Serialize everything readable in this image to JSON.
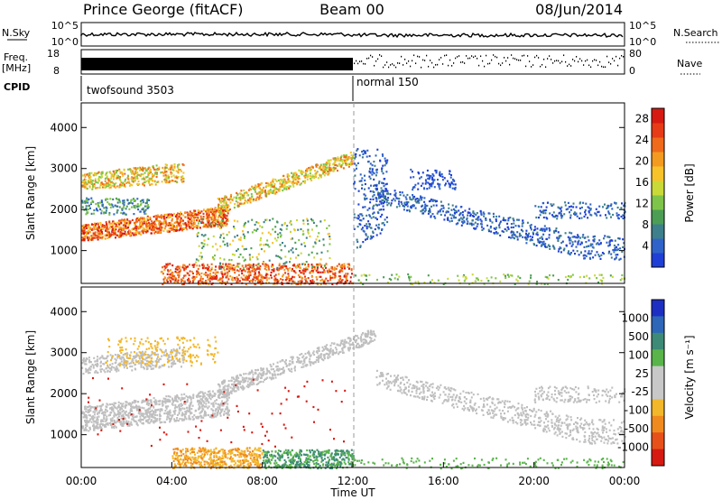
{
  "header": {
    "station": "Prince George (fitACF)",
    "beam": "Beam 00",
    "date": "08/Jun/2014"
  },
  "strips": {
    "nsky_label": "N.Sky",
    "nsky_ticks": [
      "10^5",
      "10^0"
    ],
    "nsearch_label": "N.Search",
    "nsearch_ticks": [
      "10^5",
      "10^0"
    ],
    "freq_label_line1": "Freq.",
    "freq_label_line2": "[MHz]",
    "freq_ticks": [
      "18",
      "8"
    ],
    "nave_label": "Nave",
    "nave_ticks": [
      "80",
      "0"
    ],
    "cpid_label": "CPID",
    "cpid_segments": [
      {
        "name": "twofsound 3503",
        "start_hour": 0,
        "end_hour": 12
      },
      {
        "name": "normal 150",
        "start_hour": 12,
        "end_hour": 24
      }
    ]
  },
  "chart_data": [
    {
      "type": "heatmap",
      "title": "",
      "ylabel": "Slant Range [km]",
      "xlabel": "",
      "xlim": [
        0,
        24
      ],
      "ylim": [
        200,
        4600
      ],
      "yticks": [
        "1000",
        "2000",
        "3000",
        "4000"
      ],
      "colorbar": {
        "label": "Power [dB]",
        "ticks": [
          "4",
          "8",
          "12",
          "16",
          "20",
          "24",
          "28"
        ],
        "range": [
          0,
          30
        ]
      },
      "regions": [
        {
          "name": "lower band",
          "x": [
            0,
            6
          ],
          "y": [
            1300,
            1600
          ],
          "value": 22
        },
        {
          "name": "upper band",
          "x": [
            0,
            4
          ],
          "y": [
            2600,
            2900
          ],
          "value": 18
        },
        {
          "name": "near-range echoes",
          "x": [
            4,
            12
          ],
          "y": [
            200,
            600
          ],
          "value": 26
        },
        {
          "name": "rising band",
          "x": [
            6,
            12
          ],
          "y": [
            1900,
            3300
          ],
          "value": 16
        },
        {
          "name": "evening band",
          "x": [
            13,
            24
          ],
          "y": [
            800,
            1400
          ],
          "value": 6
        },
        {
          "name": "late echoes",
          "x": [
            20,
            24
          ],
          "y": [
            1800,
            2200
          ],
          "value": 6
        }
      ]
    },
    {
      "type": "heatmap",
      "title": "",
      "ylabel": "Slant Range [km]",
      "xlabel": "Time UT",
      "xlim": [
        0,
        24
      ],
      "ylim": [
        200,
        4600
      ],
      "xticks": [
        "00:00",
        "04:00",
        "08:00",
        "12:00",
        "16:00",
        "20:00",
        "00:00"
      ],
      "yticks": [
        "1000",
        "2000",
        "3000",
        "4000"
      ],
      "colorbar": {
        "label": "Velocity [m s⁻¹]",
        "ticks": [
          "1000",
          "500",
          "100",
          "25",
          "-25",
          "-100",
          "-500",
          "-1000"
        ]
      },
      "regions": [
        {
          "name": "ground scatter",
          "x": [
            0,
            24
          ],
          "y": [
            800,
            3400
          ],
          "value": 0
        },
        {
          "name": "negative flow",
          "x": [
            4,
            8
          ],
          "y": [
            200,
            700
          ],
          "value": -300
        },
        {
          "name": "positive flow",
          "x": [
            8,
            12
          ],
          "y": [
            200,
            600
          ],
          "value": 150
        }
      ]
    }
  ],
  "colors": {
    "power_scale": [
      "#1f3fd6",
      "#2f63c9",
      "#3d7f8a",
      "#4d9e55",
      "#7fc44a",
      "#c9d938",
      "#f7c22a",
      "#f39a20",
      "#ef6a1a",
      "#e63b16",
      "#d61a12"
    ],
    "velocity_scale": [
      "#1c2fc2",
      "#2e66b8",
      "#3d8a76",
      "#59b44a",
      "#c8c8c8",
      "#c8c8c8",
      "#f2b72a",
      "#f08a1f",
      "#e8501a",
      "#d61a12"
    ],
    "ground_scatter": "#bfbfbf"
  }
}
